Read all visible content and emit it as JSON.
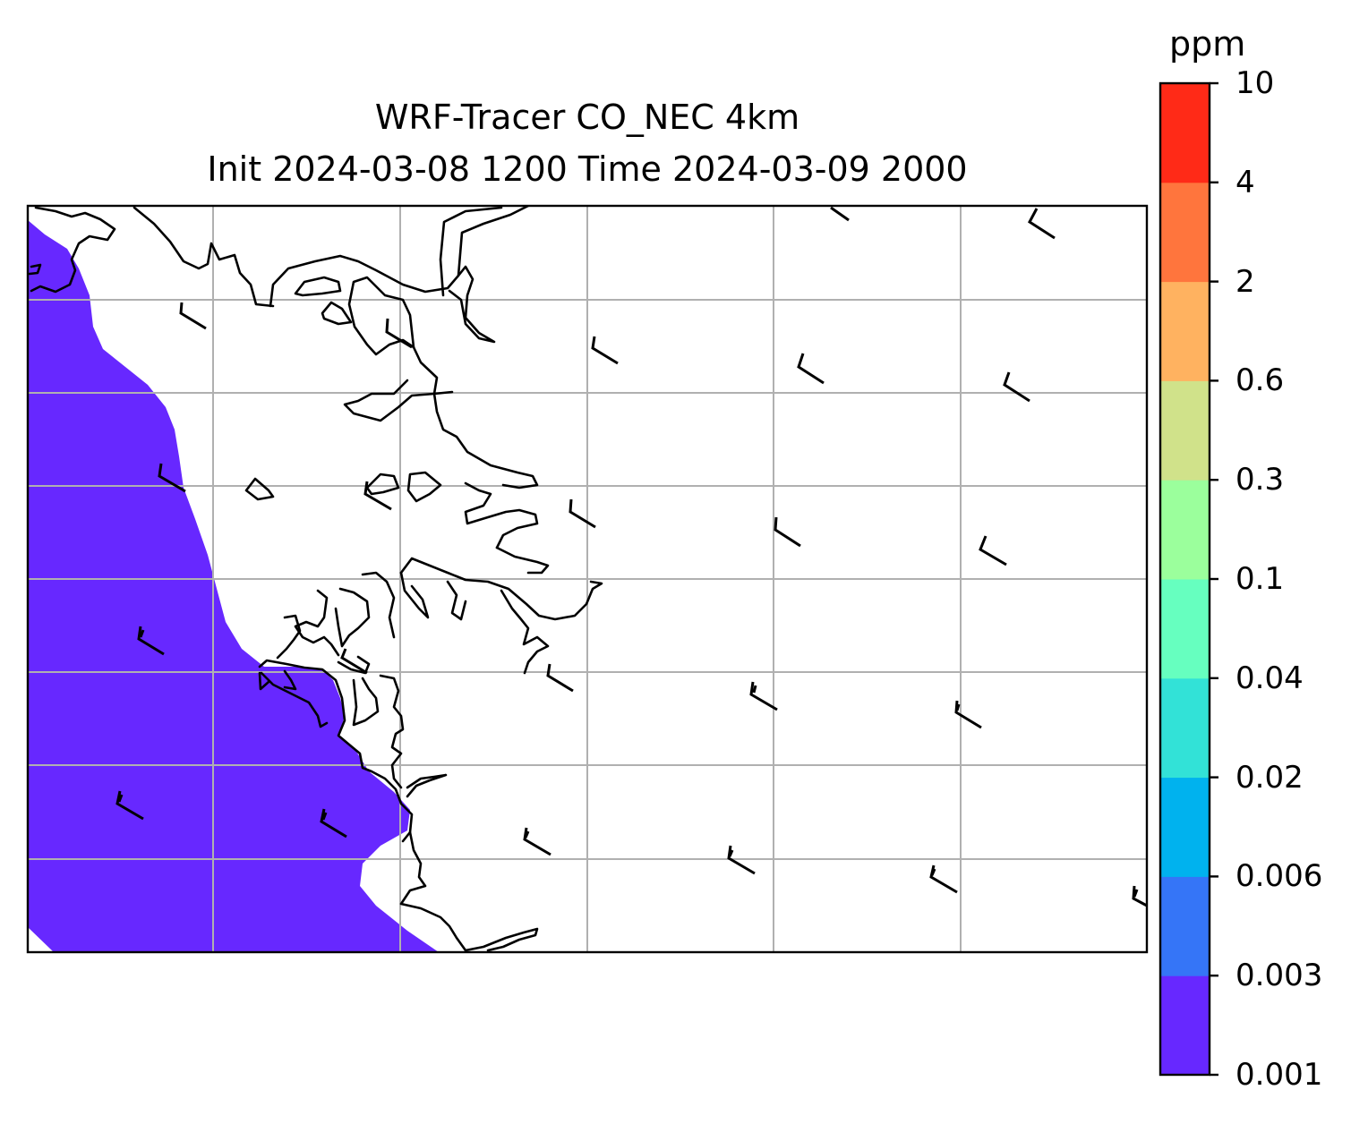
{
  "title": {
    "line1": "WRF-Tracer CO_NEC 4km",
    "line2": "Init 2024-03-08 1200 Time 2024-03-09 2000"
  },
  "colorbar": {
    "unit": "ppm",
    "levels": [
      "0.001",
      "0.003",
      "0.006",
      "0.02",
      "0.04",
      "0.1",
      "0.3",
      "0.6",
      "2",
      "4",
      "10"
    ],
    "colors": [
      "#6728ff",
      "#3575f7",
      "#00b2ee",
      "#32e2d7",
      "#66ffbf",
      "#9bff9c",
      "#d0e28a",
      "#ffb260",
      "#ff753d",
      "#ff2a17"
    ]
  },
  "map": {
    "field_color": "#6728ff",
    "coastline_color": "#000000",
    "gridline_color": "#b0b0b0",
    "wind_barbs": "black"
  }
}
